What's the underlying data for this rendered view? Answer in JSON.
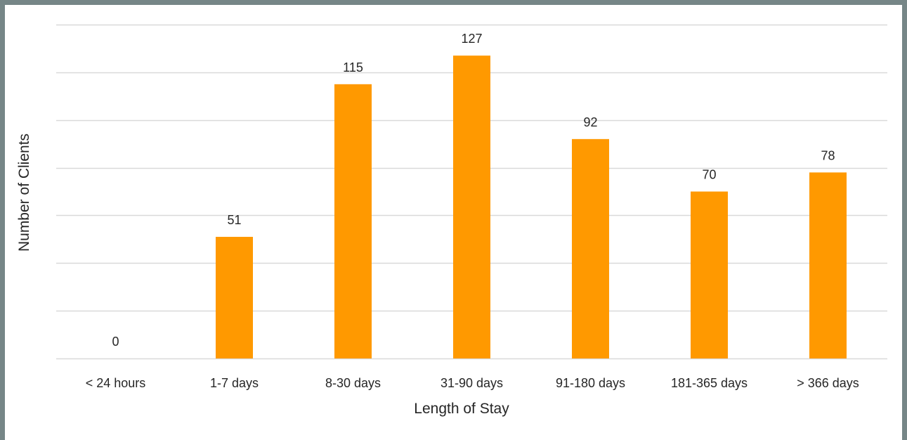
{
  "chart_data": {
    "type": "bar",
    "title": "",
    "xlabel": "Length of Stay",
    "ylabel": "Number of Clients",
    "categories": [
      "< 24 hours",
      "1-7 days",
      "8-30 days",
      "31-90 days",
      "91-180 days",
      "181-365 days",
      "> 366 days"
    ],
    "values": [
      0,
      51,
      115,
      127,
      92,
      70,
      78
    ],
    "ylim": [
      0,
      140
    ],
    "ytick_step": 20,
    "grid": true,
    "legend": "none",
    "bar_color": "#FF9900",
    "frame_color": "#768687",
    "grid_color": "#D9D9D9"
  }
}
